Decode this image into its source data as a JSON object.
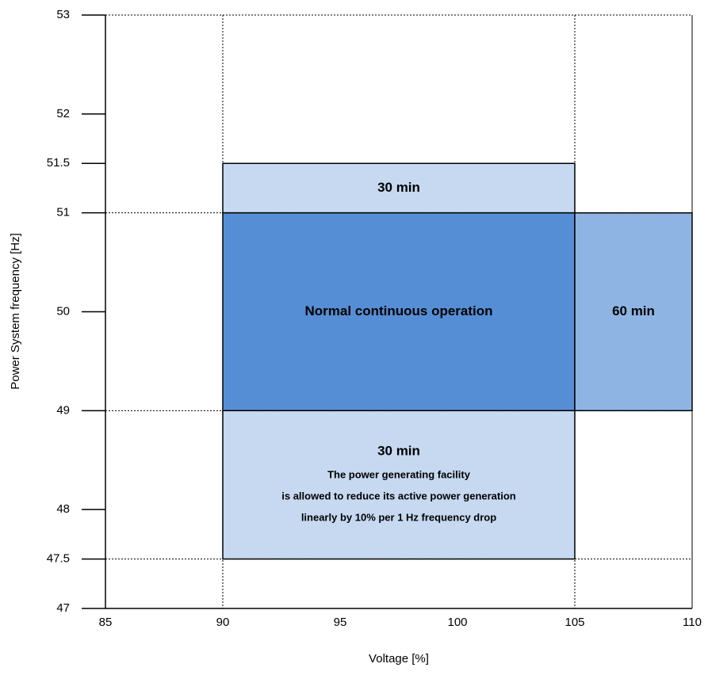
{
  "chart_data": {
    "type": "region",
    "x_label": "Voltage [%]",
    "y_label": "Power System frequency [Hz]",
    "xlim": [
      85,
      110
    ],
    "ylim": [
      47,
      53
    ],
    "xticks": [
      85,
      90,
      95,
      100,
      105,
      110
    ],
    "yticks": [
      47,
      47.5,
      48,
      49,
      50,
      51,
      51.5,
      52,
      53
    ],
    "grid_x": [
      90,
      105
    ],
    "grid_y": [
      47.5,
      49,
      51,
      53
    ],
    "regions": [
      {
        "x": [
          90,
          105
        ],
        "y": [
          51,
          51.5
        ],
        "color": "#c6d9f1",
        "label": "30 min"
      },
      {
        "x": [
          90,
          105
        ],
        "y": [
          49,
          51
        ],
        "color": "#558ed5",
        "label": "Normal continuous operation"
      },
      {
        "x": [
          105,
          110
        ],
        "y": [
          49,
          51
        ],
        "color": "#8eb4e3",
        "label": "60 min"
      },
      {
        "x": [
          90,
          105
        ],
        "y": [
          47.5,
          49
        ],
        "color": "#c6d9f1",
        "label": "30 min",
        "note": [
          "The power generating facility",
          "is allowed to reduce its active power generation",
          "linearly by 10% per 1 Hz frequency drop"
        ]
      }
    ]
  }
}
